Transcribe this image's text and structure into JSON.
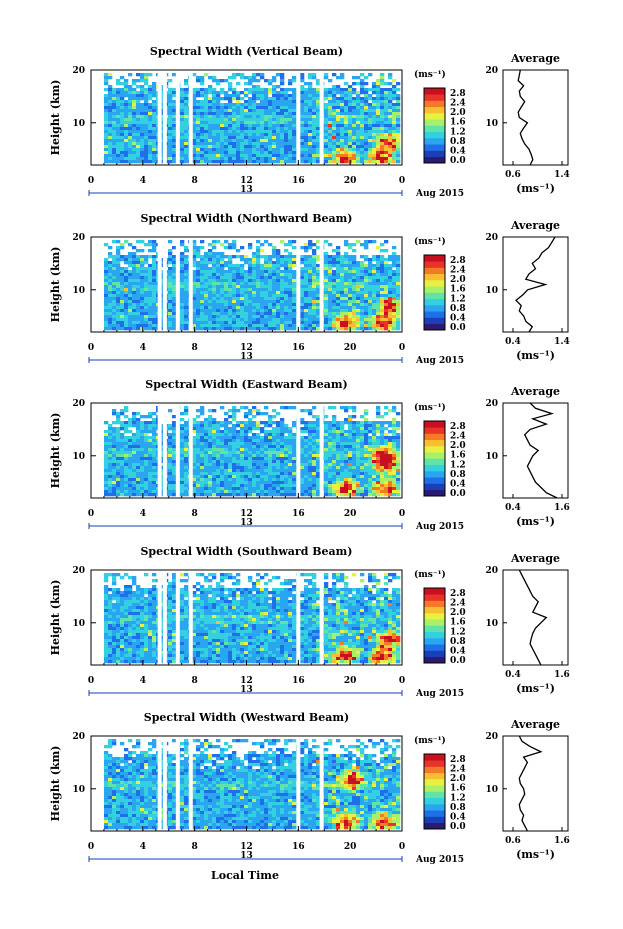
{
  "figure": {
    "xlabel": "Local Time",
    "date_label": "Aug 2015",
    "day_label": "13",
    "ylabel": "Height (km)",
    "colorbar_unit": "(ms⁻¹)",
    "avg_title": "Average",
    "avg_xlabel": "(ms⁻¹)"
  },
  "colormap": [
    "#2b1b6e",
    "#1a3fb8",
    "#1f6fe8",
    "#2aa6f0",
    "#33d1e0",
    "#5fe3a8",
    "#a8ef6a",
    "#e8f040",
    "#f8c030",
    "#f47a26",
    "#e8322a",
    "#c81020"
  ],
  "chart_data": [
    {
      "type": "heatmap",
      "title": "Spectral Width (Vertical Beam)",
      "x_ticks": [
        "0",
        "4",
        "8",
        "12",
        "16",
        "20",
        "0"
      ],
      "y_ticks": [
        "20",
        "10"
      ],
      "xlim": [
        0,
        24
      ],
      "ylim": [
        2,
        20
      ],
      "colorbar_ticks": [
        "2.8",
        "2.4",
        "2.0",
        "1.6",
        "1.2",
        "0.8",
        "0.4",
        "0.0"
      ],
      "gaps_hours": [
        5.3,
        5.7,
        6.7,
        7.7,
        16.0,
        17.8
      ],
      "hotspots": [
        [
          19.5,
          3.5
        ],
        [
          22.2,
          3.5
        ],
        [
          22.8,
          6.5
        ]
      ],
      "average": {
        "title": "Average",
        "x_ticks": [
          "0.6",
          "1.4"
        ],
        "xlim": [
          0.4,
          1.6
        ],
        "heights": [
          2,
          3,
          4,
          5,
          6,
          7,
          8,
          9,
          10,
          11,
          12,
          13,
          14,
          15,
          16,
          17,
          18,
          19,
          20
        ],
        "values": [
          0.9,
          0.95,
          0.92,
          0.88,
          0.8,
          0.75,
          0.72,
          0.78,
          0.85,
          0.7,
          0.68,
          0.74,
          0.8,
          0.72,
          0.7,
          0.78,
          0.68,
          0.7,
          0.72
        ]
      }
    },
    {
      "type": "heatmap",
      "title": "Spectral Width (Northward Beam)",
      "x_ticks": [
        "0",
        "4",
        "8",
        "12",
        "16",
        "20",
        "0"
      ],
      "y_ticks": [
        "20",
        "10"
      ],
      "xlim": [
        0,
        24
      ],
      "ylim": [
        2,
        20
      ],
      "colorbar_ticks": [
        "2.8",
        "2.4",
        "2.0",
        "1.6",
        "1.2",
        "0.8",
        "0.4",
        "0.0"
      ],
      "gaps_hours": [
        5.3,
        5.7,
        6.7,
        7.7,
        16.0,
        17.8
      ],
      "hotspots": [
        [
          19.5,
          4.0
        ],
        [
          22.4,
          4.0
        ],
        [
          22.9,
          7.0
        ]
      ],
      "average": {
        "title": "Average",
        "x_ticks": [
          "0.4",
          "1.4"
        ],
        "xlim": [
          0.4,
          1.4
        ],
        "heights": [
          2,
          3,
          4,
          5,
          6,
          7,
          8,
          9,
          10,
          11,
          12,
          13,
          14,
          15,
          16,
          17,
          18,
          19,
          20
        ],
        "values": [
          0.8,
          0.85,
          0.75,
          0.72,
          0.65,
          0.68,
          0.6,
          0.7,
          0.78,
          1.05,
          0.75,
          0.8,
          0.9,
          0.85,
          0.95,
          1.0,
          1.1,
          1.15,
          1.2
        ]
      }
    },
    {
      "type": "heatmap",
      "title": "Spectral Width (Eastward Beam)",
      "x_ticks": [
        "0",
        "4",
        "8",
        "12",
        "16",
        "20",
        "0"
      ],
      "y_ticks": [
        "20",
        "10"
      ],
      "xlim": [
        0,
        24
      ],
      "ylim": [
        2,
        20
      ],
      "colorbar_ticks": [
        "2.8",
        "2.4",
        "2.0",
        "1.6",
        "1.2",
        "0.8",
        "0.4",
        "0.0"
      ],
      "gaps_hours": [
        5.3,
        5.7,
        6.7,
        7.7,
        16.0,
        17.8
      ],
      "hotspots": [
        [
          19.5,
          4.0
        ],
        [
          22.5,
          4.0
        ],
        [
          22.6,
          8.5
        ],
        [
          22.5,
          10.5
        ]
      ],
      "average": {
        "title": "Average",
        "x_ticks": [
          "0.4",
          "1.6"
        ],
        "xlim": [
          0.4,
          1.6
        ],
        "heights": [
          2,
          3,
          4,
          5,
          6,
          7,
          8,
          9,
          10,
          11,
          12,
          13,
          14,
          15,
          16,
          17,
          18,
          19,
          20
        ],
        "values": [
          1.4,
          1.2,
          1.1,
          1.0,
          0.95,
          0.9,
          0.85,
          0.9,
          0.95,
          1.05,
          0.9,
          0.85,
          0.8,
          0.9,
          1.2,
          0.95,
          1.3,
          1.0,
          0.9
        ]
      }
    },
    {
      "type": "heatmap",
      "title": "Spectral Width (Southward Beam)",
      "x_ticks": [
        "0",
        "4",
        "8",
        "12",
        "16",
        "20",
        "0"
      ],
      "y_ticks": [
        "20",
        "10"
      ],
      "xlim": [
        0,
        24
      ],
      "ylim": [
        2,
        20
      ],
      "colorbar_ticks": [
        "2.8",
        "2.4",
        "2.0",
        "1.6",
        "1.2",
        "0.8",
        "0.4",
        "0.0"
      ],
      "gaps_hours": [
        5.3,
        5.7,
        6.7,
        7.7,
        16.0,
        17.8
      ],
      "hotspots": [
        [
          19.5,
          4.0
        ],
        [
          22.4,
          4.0
        ],
        [
          22.9,
          7.0
        ]
      ],
      "average": {
        "title": "Average",
        "x_ticks": [
          "0.4",
          "1.6"
        ],
        "xlim": [
          0.4,
          1.6
        ],
        "heights": [
          2,
          3,
          4,
          5,
          6,
          7,
          8,
          9,
          10,
          11,
          12,
          13,
          14,
          15,
          16,
          17,
          18,
          19,
          20
        ],
        "values": [
          1.1,
          1.05,
          1.0,
          0.95,
          0.9,
          0.92,
          0.95,
          1.0,
          1.1,
          1.2,
          0.95,
          1.0,
          1.05,
          0.95,
          0.9,
          0.85,
          0.8,
          0.75,
          0.7
        ]
      }
    },
    {
      "type": "heatmap",
      "title": "Spectral Width (Westward Beam)",
      "x_ticks": [
        "0",
        "4",
        "8",
        "12",
        "16",
        "20",
        "0"
      ],
      "y_ticks": [
        "20",
        "10"
      ],
      "xlim": [
        0,
        24
      ],
      "ylim": [
        2,
        20
      ],
      "colorbar_ticks": [
        "2.8",
        "2.4",
        "2.0",
        "1.6",
        "1.2",
        "0.8",
        "0.4",
        "0.0"
      ],
      "gaps_hours": [
        5.3,
        5.7,
        6.7,
        7.7,
        16.0,
        17.8
      ],
      "hotspots": [
        [
          19.5,
          4.0
        ],
        [
          22.5,
          4.0
        ],
        [
          20.0,
          12.0
        ]
      ],
      "average": {
        "title": "Average",
        "x_ticks": [
          "0.6",
          "1.6"
        ],
        "xlim": [
          0.4,
          1.6
        ],
        "heights": [
          2,
          3,
          4,
          5,
          6,
          7,
          8,
          9,
          10,
          11,
          12,
          13,
          14,
          15,
          16,
          17,
          18,
          19,
          20
        ],
        "values": [
          0.85,
          0.8,
          0.75,
          0.78,
          0.72,
          0.7,
          0.75,
          0.8,
          0.78,
          0.72,
          0.7,
          0.75,
          0.8,
          0.85,
          0.78,
          1.1,
          0.9,
          0.75,
          0.7
        ]
      }
    }
  ]
}
